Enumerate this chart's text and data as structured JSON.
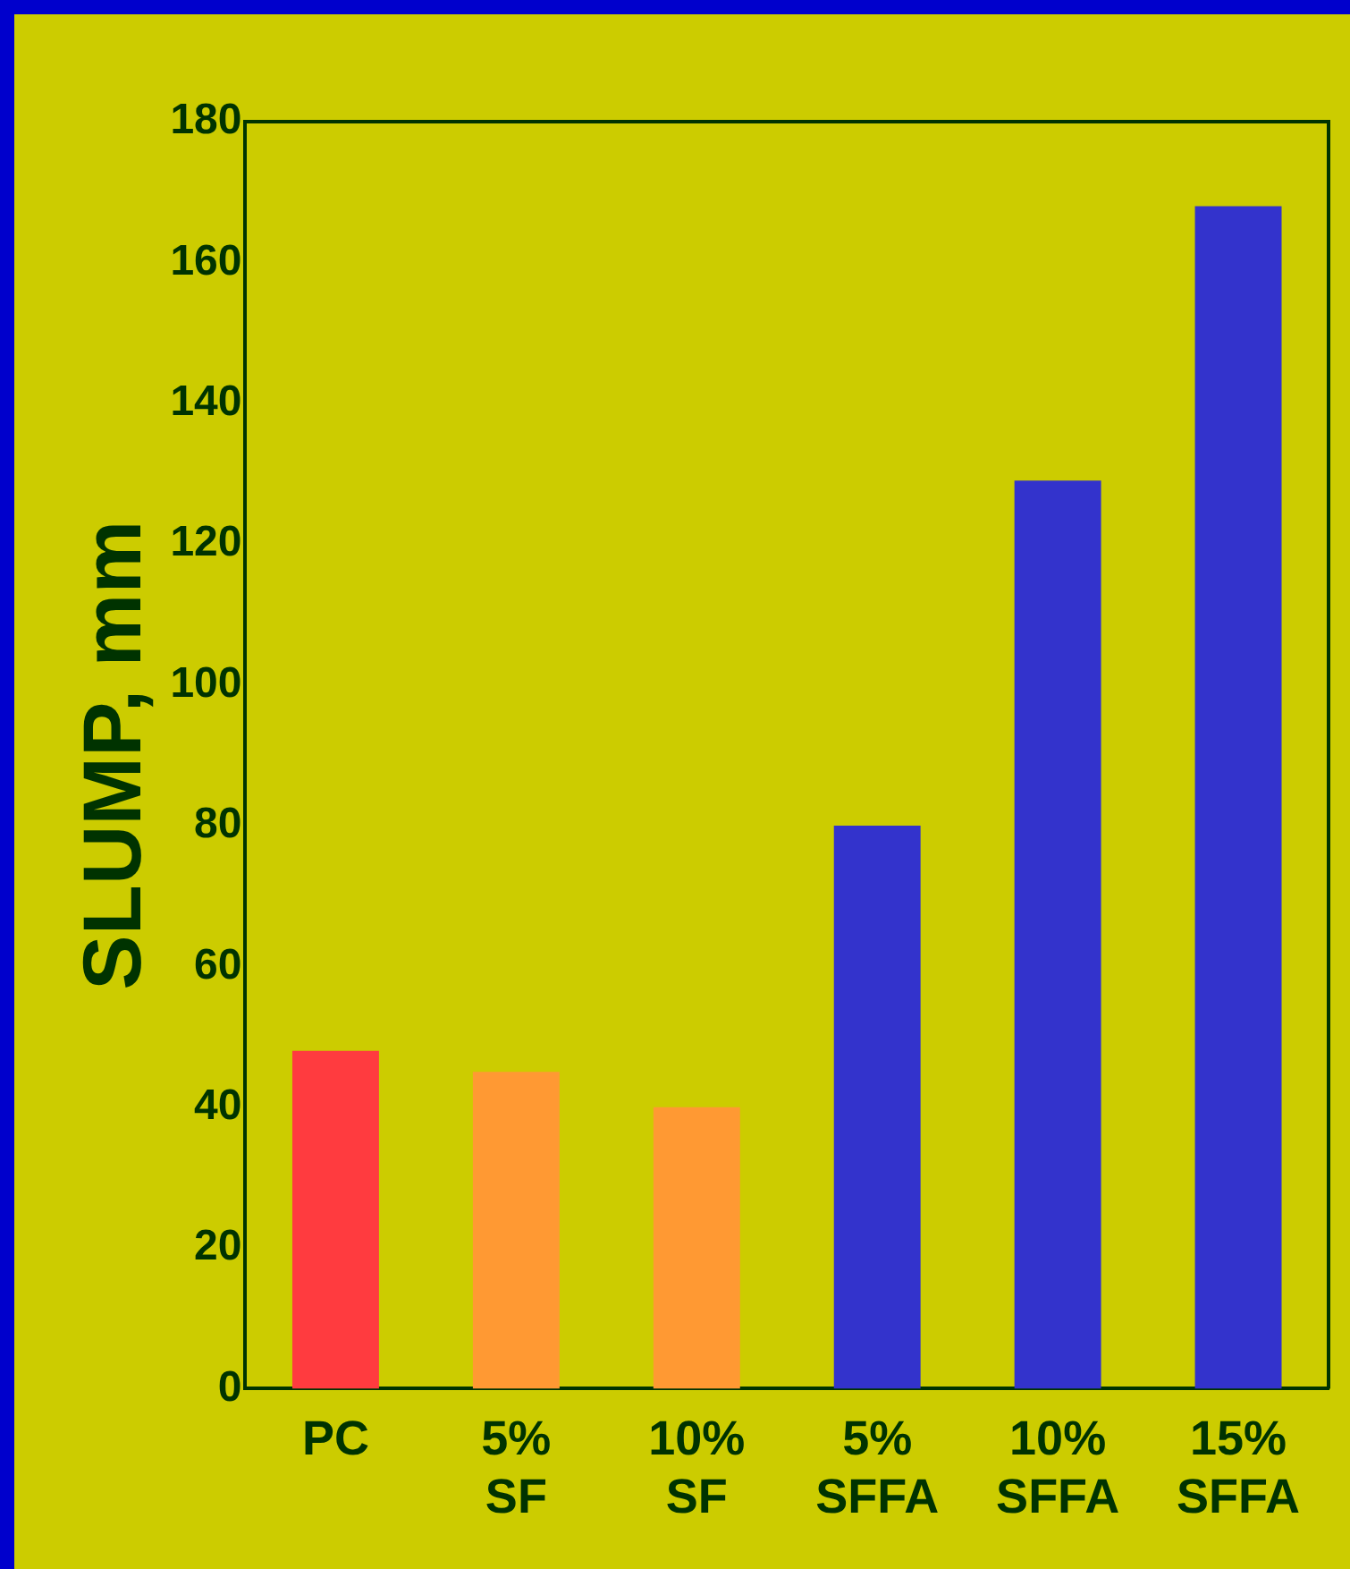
{
  "chart_data": {
    "type": "bar",
    "ylabel": "SLUMP, mm",
    "categories": [
      "PC",
      "5% SF",
      "10% SF",
      "5% SFFA",
      "10% SFFA",
      "15% SFFA"
    ],
    "values": [
      48,
      45,
      40,
      80,
      129,
      168
    ],
    "colors": [
      "#ff3b3f",
      "#ff9933",
      "#ff9933",
      "#3333cc",
      "#3333cc",
      "#3333cc"
    ],
    "ylim": [
      0,
      180
    ],
    "yticks": [
      0,
      20,
      40,
      60,
      80,
      100,
      120,
      140,
      160,
      180
    ],
    "grid": false,
    "legend": false
  }
}
